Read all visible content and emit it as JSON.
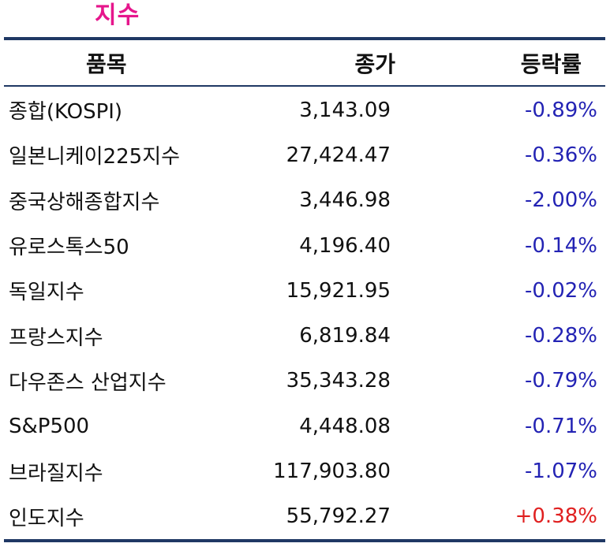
{
  "title": "지수",
  "colors": {
    "title": "#e6168c",
    "rule": "#1f3864",
    "negative": "#2323b4",
    "positive": "#e02020"
  },
  "table": {
    "headers": {
      "name": "품목",
      "price": "종가",
      "change": "등락률"
    },
    "rows": [
      {
        "name": "종합(KOSPI)",
        "price": "3,143.09",
        "change": "-0.89%",
        "direction": "neg"
      },
      {
        "name": "일본니케이225지수",
        "price": "27,424.47",
        "change": "-0.36%",
        "direction": "neg"
      },
      {
        "name": "중국상해종합지수",
        "price": "3,446.98",
        "change": "-2.00%",
        "direction": "neg"
      },
      {
        "name": "유로스톡스50",
        "price": "4,196.40",
        "change": "-0.14%",
        "direction": "neg"
      },
      {
        "name": "독일지수",
        "price": "15,921.95",
        "change": "-0.02%",
        "direction": "neg"
      },
      {
        "name": "프랑스지수",
        "price": "6,819.84",
        "change": "-0.28%",
        "direction": "neg"
      },
      {
        "name": "다우존스 산업지수",
        "price": "35,343.28",
        "change": "-0.79%",
        "direction": "neg"
      },
      {
        "name": "S&P500",
        "price": "4,448.08",
        "change": "-0.71%",
        "direction": "neg"
      },
      {
        "name": "브라질지수",
        "price": "117,903.80",
        "change": "-1.07%",
        "direction": "neg"
      },
      {
        "name": "인도지수",
        "price": "55,792.27",
        "change": "+0.38%",
        "direction": "pos"
      }
    ]
  }
}
